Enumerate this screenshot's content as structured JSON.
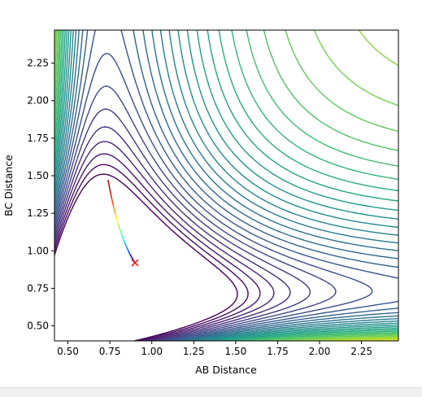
{
  "chart_data": {
    "type": "contour",
    "xlabel": "AB Distance",
    "ylabel": "BC Distance",
    "xlim": [
      0.42,
      2.47
    ],
    "ylim": [
      0.4,
      2.47
    ],
    "xticks": [
      "0.50",
      "0.75",
      "1.00",
      "1.25",
      "1.50",
      "1.75",
      "2.00",
      "2.25"
    ],
    "yticks": [
      "0.50",
      "0.75",
      "1.00",
      "1.25",
      "1.50",
      "1.75",
      "2.00",
      "2.25"
    ],
    "colormap": "viridis",
    "trajectory": {
      "colormap": "jet",
      "start": [
        0.74,
        1.47
      ],
      "end": [
        0.9,
        0.92
      ]
    },
    "marker": {
      "x": 0.9,
      "y": 0.92,
      "symbol": "x",
      "color": "#ff0000"
    }
  }
}
